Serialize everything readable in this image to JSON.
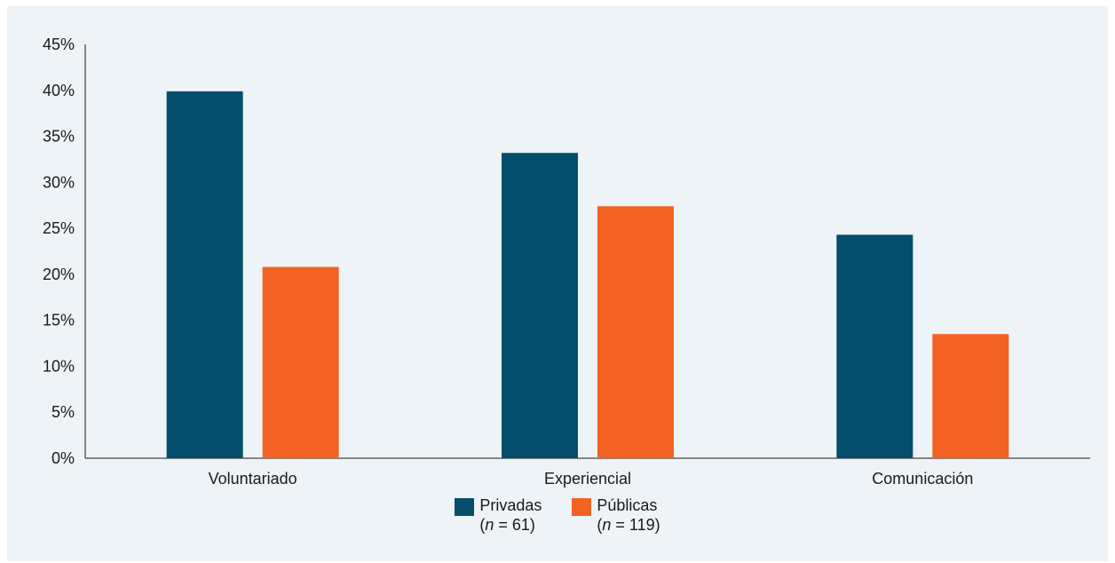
{
  "chart_data": {
    "type": "bar",
    "categories": [
      "Voluntariado",
      "Experiencial",
      "Comunicación"
    ],
    "series": [
      {
        "name": "Privadas",
        "n_label": "61",
        "color": "#054e6b",
        "values": [
          39.9,
          33.2,
          24.3
        ]
      },
      {
        "name": "Públicas",
        "n_label": "119",
        "color": "#f26222",
        "values": [
          20.8,
          27.4,
          13.5
        ]
      }
    ],
    "yticks": [
      "0%",
      "5%",
      "10%",
      "15%",
      "20%",
      "25%",
      "30%",
      "35%",
      "40%",
      "45%"
    ],
    "ylim": [
      0,
      45
    ],
    "ylabel": "",
    "xlabel": "",
    "title": "",
    "grid": false,
    "legend_position": "bottom-center",
    "background_color": "#edf3f7",
    "axis_color": "#1a1a1a"
  }
}
